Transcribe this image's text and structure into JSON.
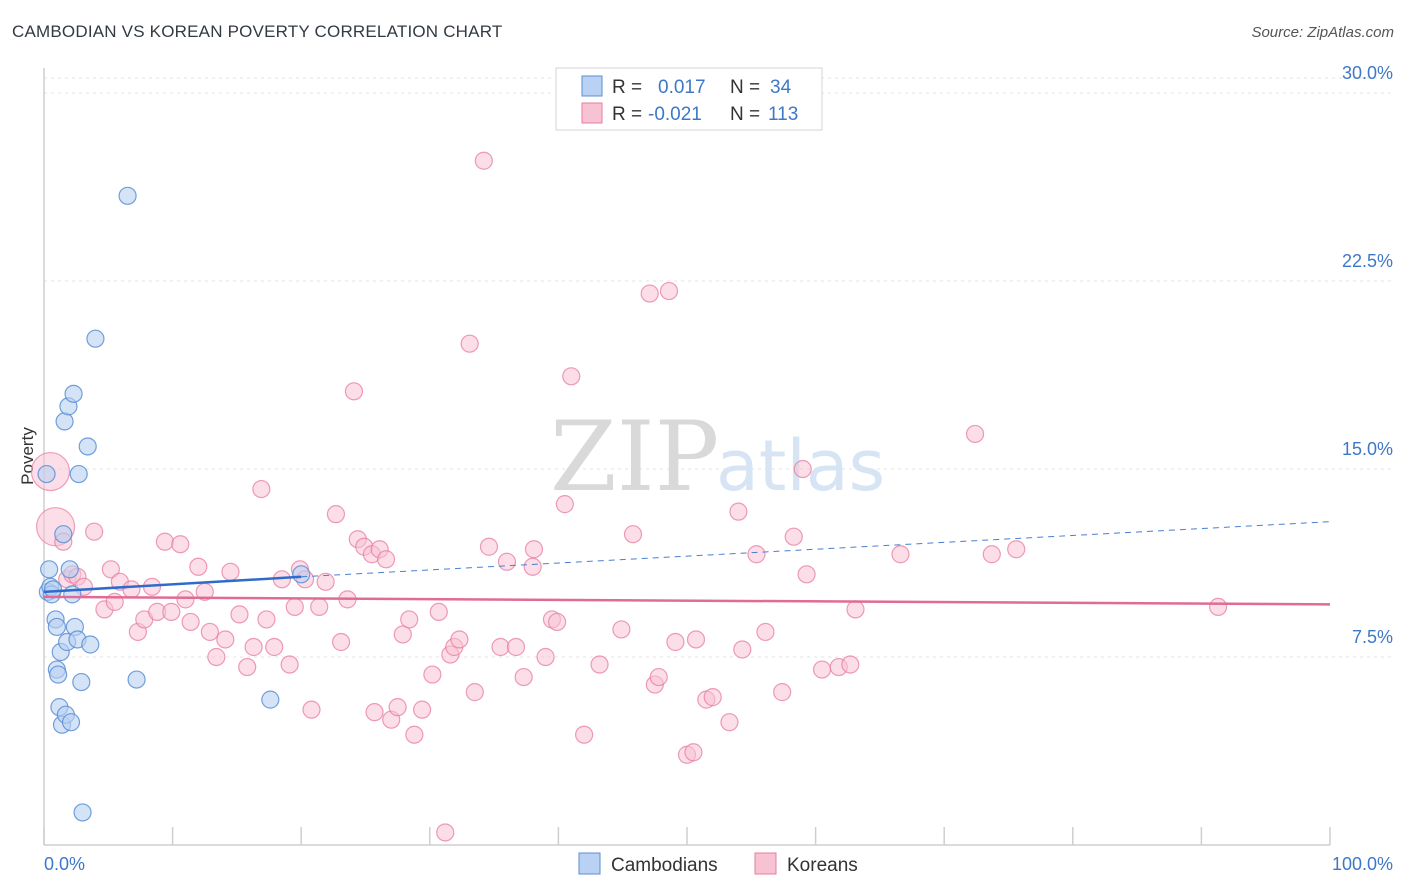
{
  "header": {
    "title": "CAMBODIAN VS KOREAN POVERTY CORRELATION CHART",
    "source": "Source: ZipAtlas.com"
  },
  "watermark": {
    "part1": "ZIP",
    "part2": "atlas"
  },
  "legend": {
    "rows": [
      {
        "r_label": "R =",
        "r_value": "0.017",
        "n_label": "N =",
        "n_value": "34"
      },
      {
        "r_label": "R =",
        "r_value": "-0.021",
        "n_label": "N =",
        "n_value": "113"
      }
    ]
  },
  "chart_data": {
    "type": "scatter",
    "title": "CAMBODIAN VS KOREAN POVERTY CORRELATION CHART",
    "xlabel": "",
    "ylabel": "Poverty",
    "xlim": [
      0,
      100
    ],
    "ylim": [
      0,
      31
    ],
    "x_tick_labels": [
      "0.0%",
      "100.0%"
    ],
    "y_ticks": [
      7.5,
      15.0,
      22.5,
      30.0
    ],
    "y_tick_labels": [
      "7.5%",
      "15.0%",
      "22.5%",
      "30.0%"
    ],
    "grid": true,
    "legend_position": "top-center",
    "colors": {
      "cambodians": "#5b8fd6",
      "koreans": "#e87ba0",
      "cambodians_fill": "#b9d1f2",
      "koreans_fill": "#f7c3d3"
    },
    "series": [
      {
        "name": "Cambodians",
        "r": 0.017,
        "n": 34,
        "trend": {
          "x": [
            0,
            20
          ],
          "y": [
            10.1,
            10.7
          ],
          "dashed_extension": {
            "x": [
              20,
              100
            ],
            "y": [
              10.7,
              12.9
            ]
          }
        },
        "points": [
          [
            0.2,
            14.8
          ],
          [
            0.3,
            10.1
          ],
          [
            0.4,
            11.0
          ],
          [
            0.5,
            10.3
          ],
          [
            0.6,
            10.0
          ],
          [
            0.7,
            10.2
          ],
          [
            0.9,
            9.0
          ],
          [
            1.0,
            8.7
          ],
          [
            1.0,
            7.0
          ],
          [
            1.1,
            6.8
          ],
          [
            1.2,
            5.5
          ],
          [
            1.3,
            7.7
          ],
          [
            1.4,
            4.8
          ],
          [
            1.5,
            12.4
          ],
          [
            1.6,
            16.9
          ],
          [
            1.7,
            5.2
          ],
          [
            1.8,
            8.1
          ],
          [
            1.9,
            17.5
          ],
          [
            2.0,
            11.0
          ],
          [
            2.1,
            4.9
          ],
          [
            2.2,
            10.0
          ],
          [
            2.3,
            18.0
          ],
          [
            2.4,
            8.7
          ],
          [
            2.6,
            8.2
          ],
          [
            2.7,
            14.8
          ],
          [
            2.9,
            6.5
          ],
          [
            3.0,
            1.3
          ],
          [
            3.4,
            15.9
          ],
          [
            3.6,
            8.0
          ],
          [
            4.0,
            20.2
          ],
          [
            6.5,
            25.9
          ],
          [
            7.2,
            6.6
          ],
          [
            17.6,
            5.8
          ],
          [
            20.0,
            10.8
          ]
        ]
      },
      {
        "name": "Koreans",
        "r": -0.021,
        "n": 113,
        "trend": {
          "x": [
            0,
            100
          ],
          "y": [
            9.9,
            9.6
          ]
        },
        "large_points": [
          [
            0.5,
            14.9
          ],
          [
            0.9,
            12.7
          ]
        ],
        "points": [
          [
            1.5,
            12.1
          ],
          [
            1.8,
            10.6
          ],
          [
            2.2,
            10.8
          ],
          [
            2.6,
            10.7
          ],
          [
            3.1,
            10.3
          ],
          [
            3.9,
            12.5
          ],
          [
            4.7,
            9.4
          ],
          [
            5.2,
            11.0
          ],
          [
            5.5,
            9.7
          ],
          [
            5.9,
            10.5
          ],
          [
            6.8,
            10.2
          ],
          [
            7.3,
            8.5
          ],
          [
            7.8,
            9.0
          ],
          [
            8.4,
            10.3
          ],
          [
            8.8,
            9.3
          ],
          [
            9.4,
            12.1
          ],
          [
            9.9,
            9.3
          ],
          [
            10.6,
            12.0
          ],
          [
            11.0,
            9.8
          ],
          [
            11.4,
            8.9
          ],
          [
            12.0,
            11.1
          ],
          [
            12.5,
            10.1
          ],
          [
            12.9,
            8.5
          ],
          [
            13.4,
            7.5
          ],
          [
            14.1,
            8.2
          ],
          [
            14.5,
            10.9
          ],
          [
            15.2,
            9.2
          ],
          [
            15.8,
            7.1
          ],
          [
            16.3,
            7.9
          ],
          [
            16.9,
            14.2
          ],
          [
            17.3,
            9.0
          ],
          [
            17.9,
            7.9
          ],
          [
            18.5,
            10.6
          ],
          [
            19.1,
            7.2
          ],
          [
            19.5,
            9.5
          ],
          [
            19.9,
            11.0
          ],
          [
            20.3,
            10.6
          ],
          [
            20.8,
            5.4
          ],
          [
            21.4,
            9.5
          ],
          [
            21.9,
            10.5
          ],
          [
            22.7,
            13.2
          ],
          [
            23.1,
            8.1
          ],
          [
            23.6,
            9.8
          ],
          [
            24.1,
            18.1
          ],
          [
            24.4,
            12.2
          ],
          [
            24.9,
            11.9
          ],
          [
            25.5,
            11.6
          ],
          [
            25.7,
            5.3
          ],
          [
            26.1,
            11.8
          ],
          [
            26.6,
            11.4
          ],
          [
            27.0,
            5.0
          ],
          [
            27.5,
            5.5
          ],
          [
            27.9,
            8.4
          ],
          [
            28.4,
            9.0
          ],
          [
            28.8,
            4.4
          ],
          [
            29.4,
            5.4
          ],
          [
            30.2,
            6.8
          ],
          [
            30.7,
            9.3
          ],
          [
            31.2,
            0.5
          ],
          [
            31.6,
            7.6
          ],
          [
            31.9,
            7.9
          ],
          [
            32.3,
            8.2
          ],
          [
            33.1,
            20.0
          ],
          [
            33.5,
            6.1
          ],
          [
            34.2,
            27.3
          ],
          [
            34.6,
            11.9
          ],
          [
            35.5,
            7.9
          ],
          [
            36.0,
            11.3
          ],
          [
            36.7,
            7.9
          ],
          [
            37.3,
            6.7
          ],
          [
            38.0,
            11.1
          ],
          [
            38.1,
            11.8
          ],
          [
            39.0,
            7.5
          ],
          [
            39.5,
            9.0
          ],
          [
            39.9,
            8.9
          ],
          [
            40.5,
            13.6
          ],
          [
            41.0,
            18.7
          ],
          [
            42.0,
            4.4
          ],
          [
            43.2,
            7.2
          ],
          [
            44.9,
            8.6
          ],
          [
            45.8,
            12.4
          ],
          [
            47.1,
            22.0
          ],
          [
            47.5,
            6.4
          ],
          [
            47.8,
            6.7
          ],
          [
            48.6,
            22.1
          ],
          [
            49.1,
            8.1
          ],
          [
            50.0,
            3.6
          ],
          [
            50.5,
            3.7
          ],
          [
            50.7,
            8.2
          ],
          [
            51.5,
            5.8
          ],
          [
            52.0,
            5.9
          ],
          [
            53.3,
            4.9
          ],
          [
            54.0,
            13.3
          ],
          [
            54.3,
            7.8
          ],
          [
            55.4,
            11.6
          ],
          [
            56.1,
            8.5
          ],
          [
            57.4,
            6.1
          ],
          [
            58.3,
            12.3
          ],
          [
            59.0,
            15.0
          ],
          [
            59.3,
            10.8
          ],
          [
            60.5,
            7.0
          ],
          [
            61.8,
            7.1
          ],
          [
            62.7,
            7.2
          ],
          [
            63.1,
            9.4
          ],
          [
            66.6,
            11.6
          ],
          [
            72.4,
            16.4
          ],
          [
            73.7,
            11.6
          ],
          [
            75.6,
            11.8
          ],
          [
            91.3,
            9.5
          ]
        ]
      }
    ]
  },
  "bottom_legend": {
    "items": [
      {
        "label": "Cambodians"
      },
      {
        "label": "Koreans"
      }
    ]
  }
}
